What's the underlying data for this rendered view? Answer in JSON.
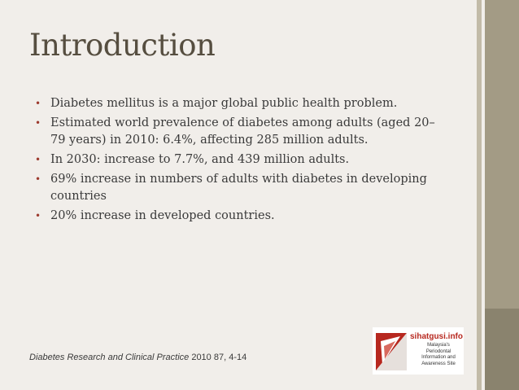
{
  "slide": {
    "title": "Introduction",
    "bullets": [
      "Diabetes mellitus is a major global public health problem.",
      "Estimated world prevalence of diabetes among adults (aged 20–79 years) in 2010: 6.4%, affecting 285 million adults.",
      "In 2030: increase to 7.7%, and 439 million adults.",
      "69% increase in numbers of adults with diabetes in developing countries",
      "20% increase in developed countries."
    ],
    "bullet_glyph": "•",
    "citation": {
      "journal": "Diabetes Research and Clinical Practice",
      "details": " 2010 87, 4-14"
    },
    "logo": {
      "site": "sihatgusi.info",
      "tagline": "Malaysia's Periodontal Information and Awareness Site"
    },
    "colors": {
      "background": "#f1eeea",
      "title": "#564e40",
      "bullet_marker": "#9c3a2e",
      "side_band": "#a39b85",
      "logo_red": "#b7281f"
    }
  }
}
